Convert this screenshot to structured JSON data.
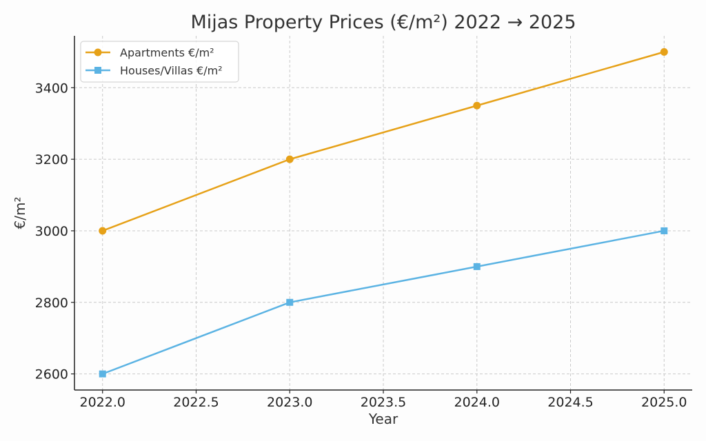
{
  "chart_data": {
    "type": "line",
    "title": "Mijas Property Prices (€/m²) 2022 → 2025",
    "xlabel": "Year",
    "ylabel": "€/m²",
    "xlim": [
      2021.85,
      2025.15
    ],
    "ylim": [
      2555,
      3545
    ],
    "xticks": [
      2022.0,
      2022.5,
      2023.0,
      2023.5,
      2024.0,
      2024.5,
      2025.0
    ],
    "xtick_labels": [
      "2022.0",
      "2022.5",
      "2023.0",
      "2023.5",
      "2024.0",
      "2024.5",
      "2025.0"
    ],
    "yticks": [
      2600,
      2800,
      3000,
      3200,
      3400
    ],
    "ytick_labels": [
      "2600",
      "2800",
      "3000",
      "3200",
      "3400"
    ],
    "grid": true,
    "legend_position": "top-left",
    "x": [
      2022,
      2023,
      2024,
      2025
    ],
    "series": [
      {
        "name": "Apartments €/m²",
        "values": [
          3000,
          3200,
          3350,
          3500
        ],
        "color": "#e6a118",
        "marker": "circle"
      },
      {
        "name": "Houses/Villas €/m²",
        "values": [
          2600,
          2800,
          2900,
          3000
        ],
        "color": "#5bb3e3",
        "marker": "square"
      }
    ]
  }
}
